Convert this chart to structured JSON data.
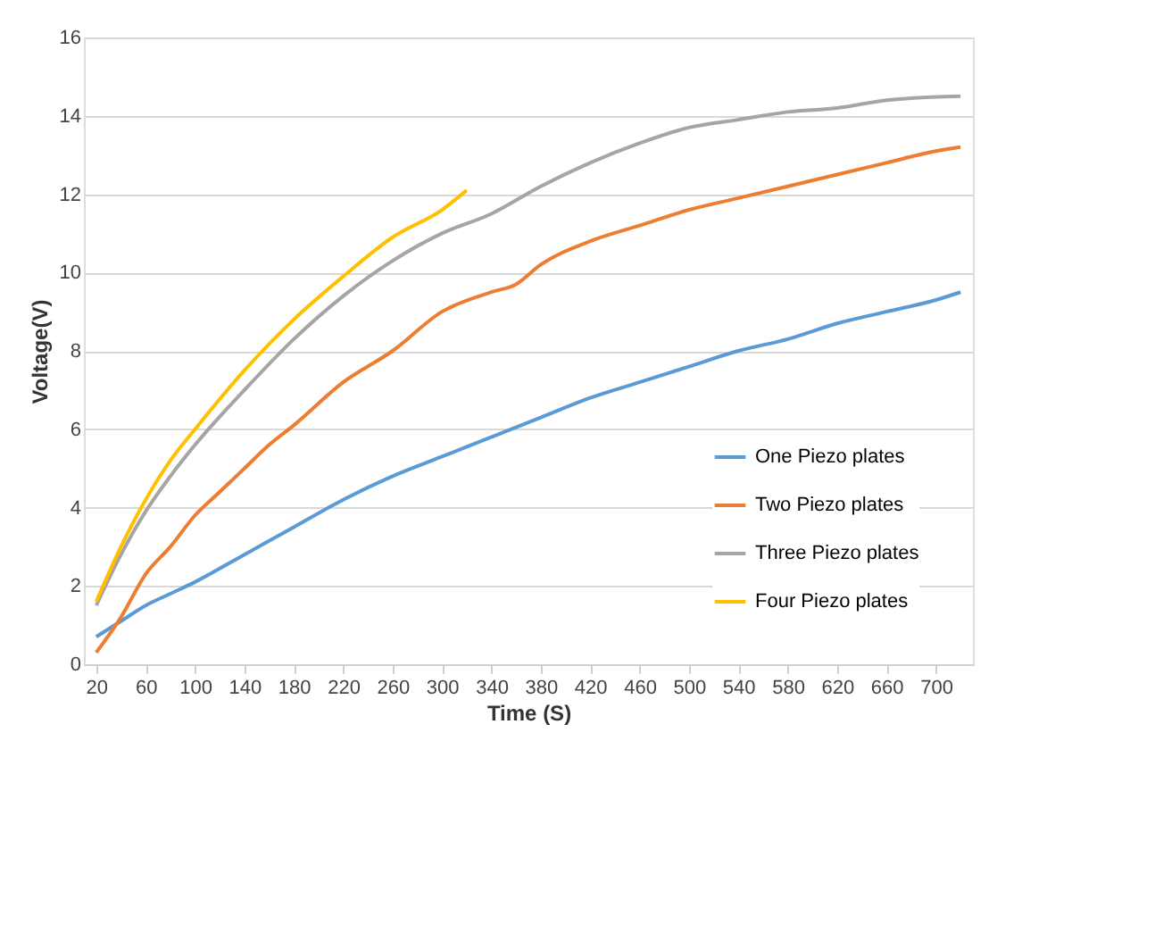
{
  "chart_data": {
    "type": "line",
    "xlabel": "Time (S)",
    "ylabel": "Voltage(V)",
    "xlim": [
      10,
      730
    ],
    "xticks": [
      20,
      60,
      100,
      140,
      180,
      220,
      260,
      300,
      340,
      380,
      420,
      460,
      500,
      540,
      580,
      620,
      660,
      700
    ],
    "ylim": [
      0,
      16
    ],
    "yticks": [
      0,
      2,
      4,
      6,
      8,
      10,
      12,
      14,
      16
    ],
    "grid": "y",
    "legend": "bottom right",
    "marker": "none",
    "line_style": "solid",
    "series": [
      {
        "name": "One Piezo plates",
        "color": "#5b9bd5",
        "x": [
          20,
          40,
          60,
          80,
          100,
          140,
          180,
          220,
          260,
          300,
          340,
          380,
          420,
          460,
          500,
          540,
          580,
          620,
          660,
          700,
          720
        ],
        "values": [
          0.7,
          1.1,
          1.5,
          1.8,
          2.1,
          2.8,
          3.5,
          4.2,
          4.8,
          5.3,
          5.8,
          6.3,
          6.8,
          7.2,
          7.6,
          8.0,
          8.3,
          8.7,
          9.0,
          9.3,
          9.5
        ]
      },
      {
        "name": "Two Piezo plates",
        "color": "#ed7d31",
        "x": [
          20,
          40,
          60,
          80,
          100,
          120,
          140,
          160,
          180,
          220,
          260,
          300,
          340,
          360,
          380,
          420,
          460,
          500,
          540,
          580,
          620,
          660,
          700,
          720
        ],
        "values": [
          0.3,
          1.2,
          2.3,
          3.0,
          3.8,
          4.4,
          5.0,
          5.6,
          6.1,
          7.2,
          8.0,
          9.0,
          9.5,
          9.7,
          10.2,
          10.8,
          11.2,
          11.6,
          11.9,
          12.2,
          12.5,
          12.8,
          13.1,
          13.2
        ]
      },
      {
        "name": "Three Piezo plates",
        "color": "#a5a5a5",
        "x": [
          20,
          40,
          60,
          80,
          100,
          140,
          180,
          220,
          260,
          300,
          340,
          380,
          420,
          460,
          500,
          540,
          580,
          620,
          660,
          720
        ],
        "values": [
          1.5,
          2.8,
          3.9,
          4.8,
          5.6,
          7.0,
          8.3,
          9.4,
          10.3,
          11.0,
          11.5,
          12.2,
          12.8,
          13.3,
          13.7,
          13.9,
          14.1,
          14.2,
          14.4,
          14.5
        ]
      },
      {
        "name": "Four Piezo plates",
        "color": "#ffc000",
        "x": [
          20,
          40,
          60,
          80,
          100,
          140,
          180,
          220,
          260,
          300,
          320
        ],
        "values": [
          1.6,
          3.0,
          4.2,
          5.2,
          6.0,
          7.5,
          8.8,
          9.9,
          10.9,
          11.6,
          12.1
        ]
      }
    ]
  }
}
